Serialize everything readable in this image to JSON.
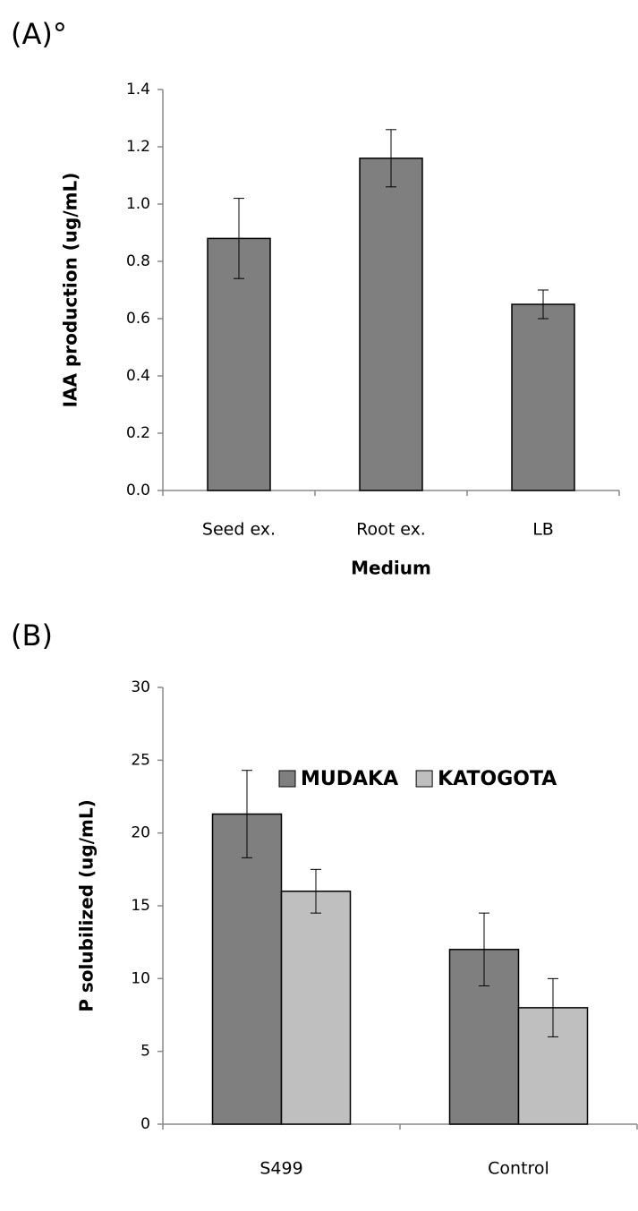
{
  "chart_data": [
    {
      "type": "bar",
      "panel_label": "(A)°",
      "ylabel": "IAA production (ug/mL)",
      "xlabel": "Medium",
      "categories": [
        "Seed ex.",
        "Root ex.",
        "LB"
      ],
      "series": [
        {
          "name": null,
          "color": "#7f7f7f",
          "values": [
            0.88,
            1.16,
            0.65
          ],
          "errors": [
            0.14,
            0.1,
            0.05
          ]
        }
      ],
      "ylim": [
        0,
        1.4
      ],
      "yticks": [
        {
          "value": 0,
          "label": "0.0"
        },
        0.2,
        0.4,
        0.6,
        0.8,
        {
          "value": 1,
          "label": "1.0"
        },
        1.2,
        1.4
      ],
      "legend": false
    },
    {
      "type": "bar",
      "panel_label": "(B)",
      "ylabel": "P solubilized (ug/mL)",
      "categories": [
        "S499",
        "Control"
      ],
      "series": [
        {
          "name": "MUDAKA",
          "color": "#7f7f7f",
          "values": [
            21.3,
            12
          ],
          "errors": [
            3,
            2.5
          ]
        },
        {
          "name": "KATOGOTA",
          "color": "#bfbfbf",
          "values": [
            16,
            8
          ],
          "errors": [
            1.5,
            2
          ]
        }
      ],
      "ylim": [
        0,
        30
      ],
      "yticks": [
        0,
        5,
        10,
        15,
        20,
        25,
        30
      ],
      "legend": "top-right"
    }
  ]
}
